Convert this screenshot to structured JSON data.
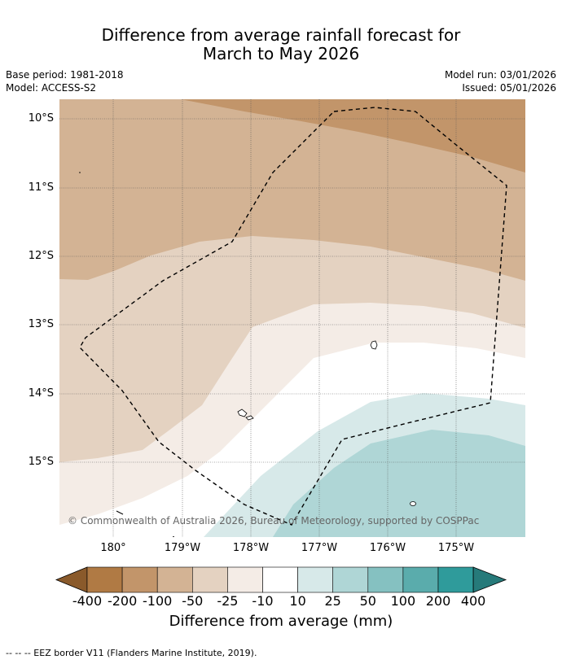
{
  "title_line1": "Difference from average rainfall forecast for",
  "title_line2": "March to May 2026",
  "meta": {
    "base_period": "Base period: 1981-2018",
    "model": "Model: ACCESS-S2",
    "model_run": "Model run: 03/01/2026",
    "issued": "Issued: 05/01/2026"
  },
  "lat_labels": [
    "10°S",
    "11°S",
    "12°S",
    "13°S",
    "14°S",
    "15°S"
  ],
  "lon_labels": [
    "180°",
    "179°W",
    "178°W",
    "177°W",
    "176°W",
    "175°W"
  ],
  "copyright": "© Commonwealth of Australia 2026, Bureau of Meteorology, supported by COSPPac",
  "colorbar": {
    "labels": [
      "-400",
      "-200",
      "-100",
      "-50",
      "-25",
      "-10",
      "10",
      "25",
      "50",
      "100",
      "200",
      "400"
    ],
    "colors": [
      "#8a5a2b",
      "#b07a44",
      "#c2956a",
      "#d3b394",
      "#e4d2c1",
      "#f4ece6",
      "#ffffff",
      "#d7e9e9",
      "#afd6d6",
      "#85c1c1",
      "#5aacac",
      "#2f9b9b",
      "#267a7a"
    ],
    "title": "Difference from average (mm)"
  },
  "footnote": "--  --  -- EEZ border V11 (Flanders Marine Institute, 2019)."
}
